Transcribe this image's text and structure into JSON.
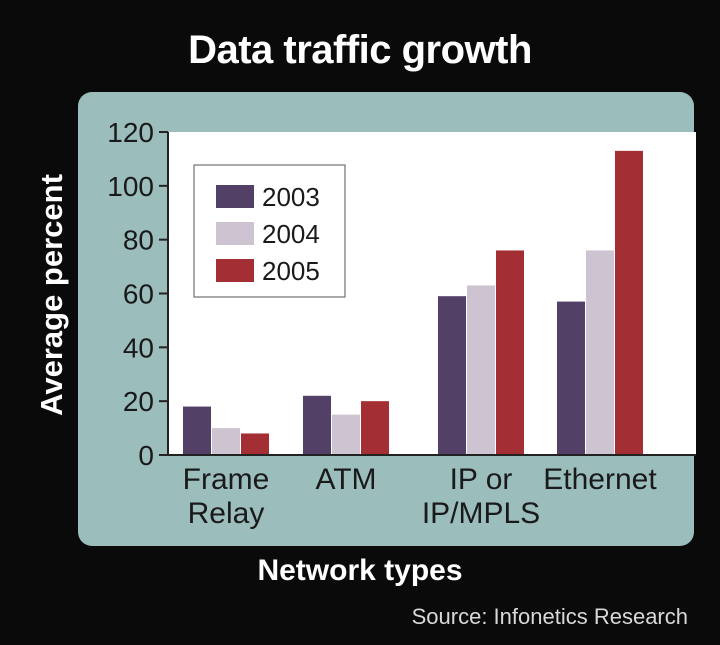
{
  "chart_data": {
    "type": "bar",
    "title": "Data traffic growth",
    "xlabel": "Network types",
    "ylabel": "Average percent",
    "source": "Source: Infonetics Research",
    "categories": [
      [
        "Frame",
        "Relay"
      ],
      [
        "ATM"
      ],
      [
        "IP or",
        "IP/MPLS"
      ],
      [
        "Ethernet"
      ]
    ],
    "series": [
      {
        "name": "2003",
        "color": "#524067",
        "values": [
          18,
          22,
          59,
          57
        ]
      },
      {
        "name": "2004",
        "color": "#cec3d1",
        "values": [
          10,
          15,
          63,
          76
        ]
      },
      {
        "name": "2005",
        "color": "#a32f34",
        "values": [
          8,
          20,
          76,
          113
        ]
      }
    ],
    "ylim": [
      0,
      120
    ],
    "yticks": [
      0,
      20,
      40,
      60,
      80,
      100,
      120
    ],
    "grid": false,
    "legend_position": "top-left",
    "colors": {
      "background": "#0a0a0a",
      "panel": "#9bbebd",
      "plot_area": "#ffffff"
    }
  }
}
